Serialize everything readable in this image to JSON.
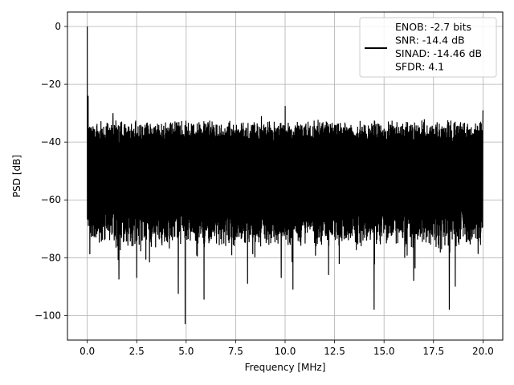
{
  "chart_data": {
    "type": "line",
    "xlabel": "Frequency [MHz]",
    "ylabel": "PSD [dB]",
    "xlim": [
      -1.0,
      21.0
    ],
    "ylim": [
      -108.5,
      5.0
    ],
    "grid": true,
    "line_color": "#000000",
    "legend": {
      "placement": "top-right",
      "entries": [
        "ENOB: -2.7 bits",
        "SNR: -14.4 dB",
        "SINAD: -14.46 dB",
        "SFDR: 4.1"
      ]
    },
    "x_ticks": [
      {
        "value": 0,
        "label": "0.0"
      },
      {
        "value": 2.5,
        "label": "2.5"
      },
      {
        "value": 5,
        "label": "5.0"
      },
      {
        "value": 7.5,
        "label": "7.5"
      },
      {
        "value": 10,
        "label": "10.0"
      },
      {
        "value": 12.5,
        "label": "12.5"
      },
      {
        "value": 15,
        "label": "15.0"
      },
      {
        "value": 17.5,
        "label": "17.5"
      },
      {
        "value": 20,
        "label": "20.0"
      }
    ],
    "y_ticks": [
      {
        "value": 0,
        "label": "0"
      },
      {
        "value": -20,
        "label": "−20"
      },
      {
        "value": -40,
        "label": "−40"
      },
      {
        "value": -60,
        "label": "−60"
      },
      {
        "value": -80,
        "label": "−80"
      },
      {
        "value": -100,
        "label": "−100"
      }
    ],
    "series": [
      {
        "name": "",
        "band": {
          "x_range": [
            0.0,
            20.0
          ],
          "upper_envelope_db": -33,
          "lower_envelope_db": -72,
          "note_free": true
        },
        "peaks": [
          {
            "x": 0.0,
            "y": 0.0
          },
          {
            "x": 0.05,
            "y": -24.0
          },
          {
            "x": 1.3,
            "y": -30.0
          },
          {
            "x": 10.0,
            "y": -27.5
          },
          {
            "x": 8.8,
            "y": -31.0
          },
          {
            "x": 20.0,
            "y": -29.0
          }
        ],
        "dips": [
          {
            "x": 4.6,
            "y": -92.5
          },
          {
            "x": 4.95,
            "y": -103.0
          },
          {
            "x": 5.9,
            "y": -94.5
          },
          {
            "x": 8.1,
            "y": -89.0
          },
          {
            "x": 10.4,
            "y": -91.0
          },
          {
            "x": 12.2,
            "y": -86.0
          },
          {
            "x": 14.5,
            "y": -98.0
          },
          {
            "x": 16.5,
            "y": -88.0
          },
          {
            "x": 18.3,
            "y": -98.0
          },
          {
            "x": 18.6,
            "y": -90.0
          },
          {
            "x": 1.6,
            "y": -87.5
          },
          {
            "x": 2.5,
            "y": -87.0
          },
          {
            "x": 9.8,
            "y": -87.0
          }
        ]
      }
    ]
  }
}
